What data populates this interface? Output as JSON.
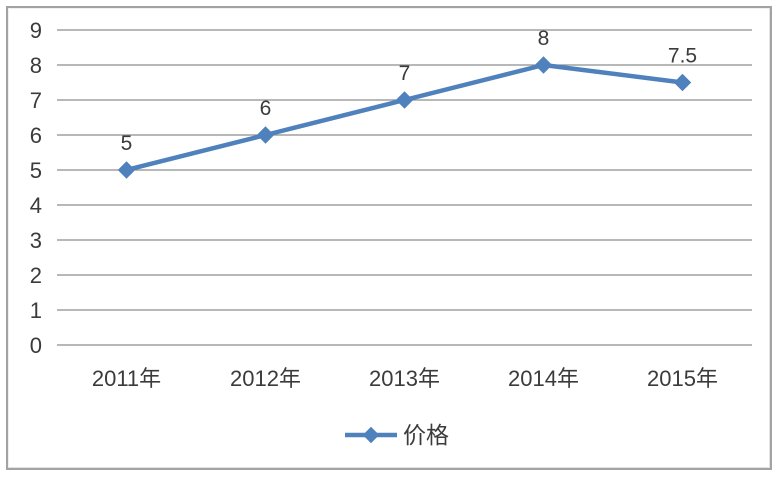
{
  "chart_data": {
    "type": "line",
    "title": "",
    "xlabel": "",
    "ylabel": "",
    "categories": [
      "2011年",
      "2012年",
      "2013年",
      "2014年",
      "2015年"
    ],
    "series": [
      {
        "name": "价格",
        "values": [
          5,
          6,
          7,
          8,
          7.5
        ],
        "color": "#4f81bd",
        "marker": "diamond"
      }
    ],
    "data_labels": [
      "5",
      "6",
      "7",
      "8",
      "7.5"
    ],
    "y_ticks": [
      "0",
      "1",
      "2",
      "3",
      "4",
      "5",
      "6",
      "7",
      "8",
      "9"
    ],
    "ylim": [
      0,
      9
    ],
    "grid": true,
    "legend_position": "bottom-center",
    "legend_entries": [
      "价格"
    ]
  },
  "colors": {
    "series_line": "#4f81bd",
    "gridline": "#8e8e8e",
    "axis_text": "#3b3b3b",
    "data_label_text": "#3b3b3b",
    "legend_text": "#3b3b3b",
    "frame_border": "#a3a3a3",
    "background": "#ffffff"
  }
}
